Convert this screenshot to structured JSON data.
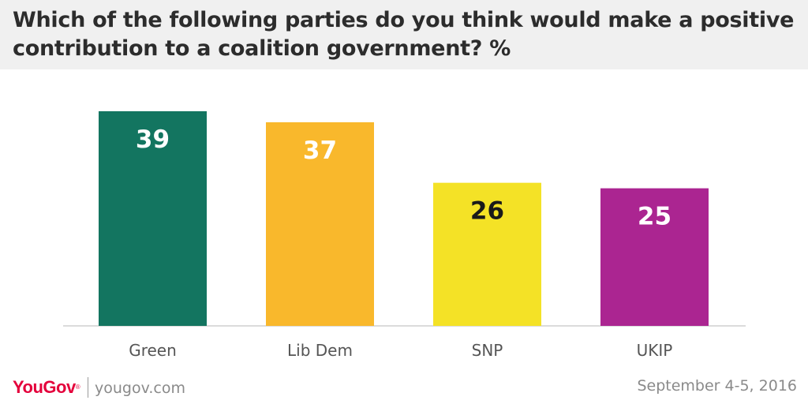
{
  "title": "Which of the following parties do you think would make a positive contribution to a coalition government? %",
  "chart_data": {
    "type": "bar",
    "categories": [
      "Green",
      "Lib Dem",
      "SNP",
      "UKIP"
    ],
    "values": [
      39,
      37,
      26,
      25
    ],
    "colors": [
      "#137560",
      "#f9b82c",
      "#f4e226",
      "#ab2591"
    ],
    "label_colors": [
      "#ffffff",
      "#ffffff",
      "#1a1a1a",
      "#ffffff"
    ],
    "ylim": [
      0,
      40
    ],
    "grid": false,
    "legend": "none"
  },
  "footer": {
    "logo": "YouGov",
    "site": "yougov.com",
    "date": "September 4-5, 2016"
  }
}
